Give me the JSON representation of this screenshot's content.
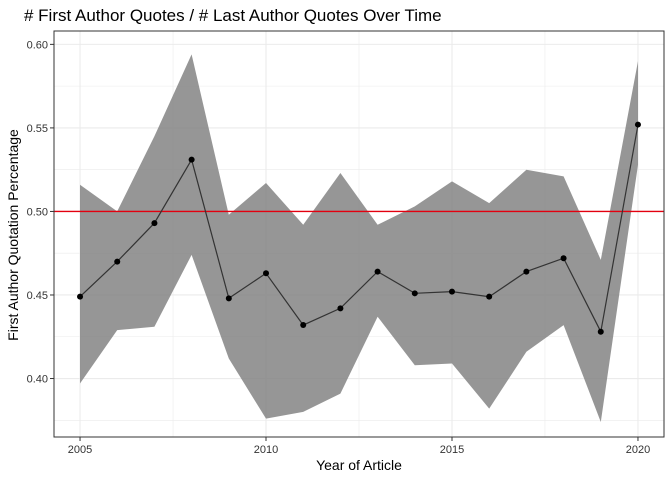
{
  "chart_data": {
    "type": "line",
    "title": "# First Author Quotes /  # Last Author Quotes Over Time",
    "xlabel": "Year of Article",
    "ylabel": "First Author Quotation Percentage",
    "xlim": [
      2004.3,
      2020.7
    ],
    "ylim": [
      0.365,
      0.608
    ],
    "x_ticks": [
      2005,
      2010,
      2015,
      2020
    ],
    "y_ticks": [
      0.4,
      0.45,
      0.5,
      0.55,
      0.6
    ],
    "x_tick_labels": [
      "2005",
      "2010",
      "2015",
      "2020"
    ],
    "y_tick_labels": [
      "0.40",
      "0.45",
      "0.50",
      "0.55",
      "0.60"
    ],
    "grid": true,
    "reference_line": {
      "y": 0.5,
      "color": "#e3000f"
    },
    "colors": {
      "ribbon": "#7f7f7f",
      "line": "#333333",
      "points": "#000000",
      "panel_border": "#333333",
      "grid": "#ebebeb"
    },
    "x": [
      2005,
      2006,
      2007,
      2008,
      2009,
      2010,
      2011,
      2012,
      2013,
      2014,
      2015,
      2016,
      2017,
      2018,
      2019,
      2020
    ],
    "series": [
      {
        "values": [
          0.449,
          0.47,
          0.493,
          0.531,
          0.448,
          0.463,
          0.432,
          0.442,
          0.464,
          0.451,
          0.452,
          0.449,
          0.464,
          0.472,
          0.428,
          0.552
        ]
      }
    ],
    "band": {
      "upper": [
        0.516,
        0.5,
        0.545,
        0.594,
        0.498,
        0.517,
        0.492,
        0.523,
        0.492,
        0.503,
        0.518,
        0.505,
        0.525,
        0.521,
        0.471,
        0.59
      ],
      "lower": [
        0.397,
        0.429,
        0.431,
        0.474,
        0.412,
        0.376,
        0.38,
        0.391,
        0.437,
        0.408,
        0.409,
        0.382,
        0.416,
        0.432,
        0.374,
        0.528
      ]
    }
  }
}
